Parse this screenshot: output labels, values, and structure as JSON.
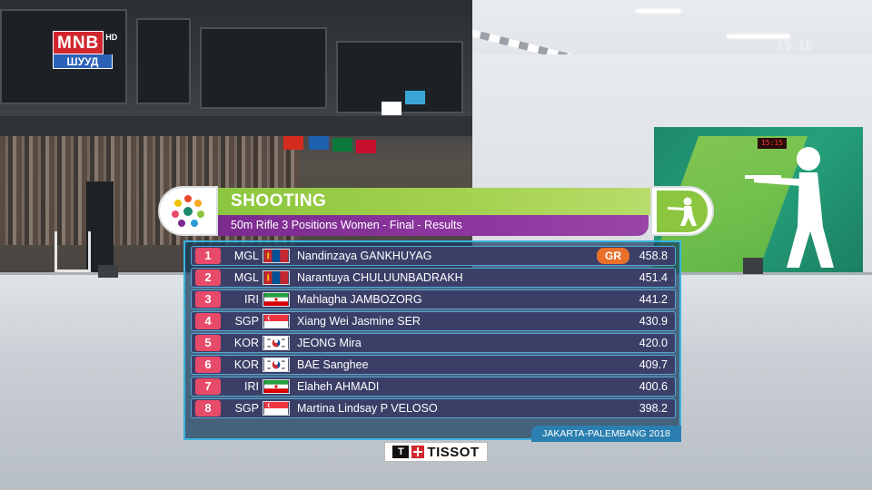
{
  "broadcaster": {
    "name": "MNB",
    "hd_label": "HD",
    "channel_label": "ШУУД"
  },
  "clock": "15:18",
  "event": {
    "sport": "SHOOTING",
    "title": "50m Rifle 3 Positions Women - Final - Results",
    "venue": "JAKARTA-PALEMBANG 2018",
    "sport_icon": "shooting-pictogram-icon",
    "games_logo": "asian-games-emblem-icon"
  },
  "results": [
    {
      "rank": "1",
      "noc": "MGL",
      "name": "Nandinzaya GANKHUYAG",
      "score": "458.8",
      "record": "GR",
      "flag": "mongolia"
    },
    {
      "rank": "2",
      "noc": "MGL",
      "name": "Narantuya CHULUUNBADRAKH",
      "score": "451.4",
      "record": "",
      "flag": "mongolia"
    },
    {
      "rank": "3",
      "noc": "IRI",
      "name": "Mahlagha JAMBOZORG",
      "score": "441.2",
      "record": "",
      "flag": "iran"
    },
    {
      "rank": "4",
      "noc": "SGP",
      "name": "Xiang Wei Jasmine SER",
      "score": "430.9",
      "record": "",
      "flag": "singapore"
    },
    {
      "rank": "5",
      "noc": "KOR",
      "name": "JEONG Mira",
      "score": "420.0",
      "record": "",
      "flag": "korea"
    },
    {
      "rank": "6",
      "noc": "KOR",
      "name": "BAE Sanghee",
      "score": "409.7",
      "record": "",
      "flag": "korea"
    },
    {
      "rank": "7",
      "noc": "IRI",
      "name": "Elaheh AHMADI",
      "score": "400.6",
      "record": "",
      "flag": "iran"
    },
    {
      "rank": "8",
      "noc": "SGP",
      "name": "Martina Lindsay P VELOSO",
      "score": "398.2",
      "record": "",
      "flag": "singapore"
    }
  ],
  "sponsor": {
    "mark": "T",
    "name": "TISSOT"
  },
  "colors": {
    "sport_green": "#8cc63f",
    "subtitle_purple": "#8e36a0",
    "rank_pink": "#e84a6a",
    "record_orange": "#e9702a",
    "panel_border": "#3ab3e0"
  }
}
